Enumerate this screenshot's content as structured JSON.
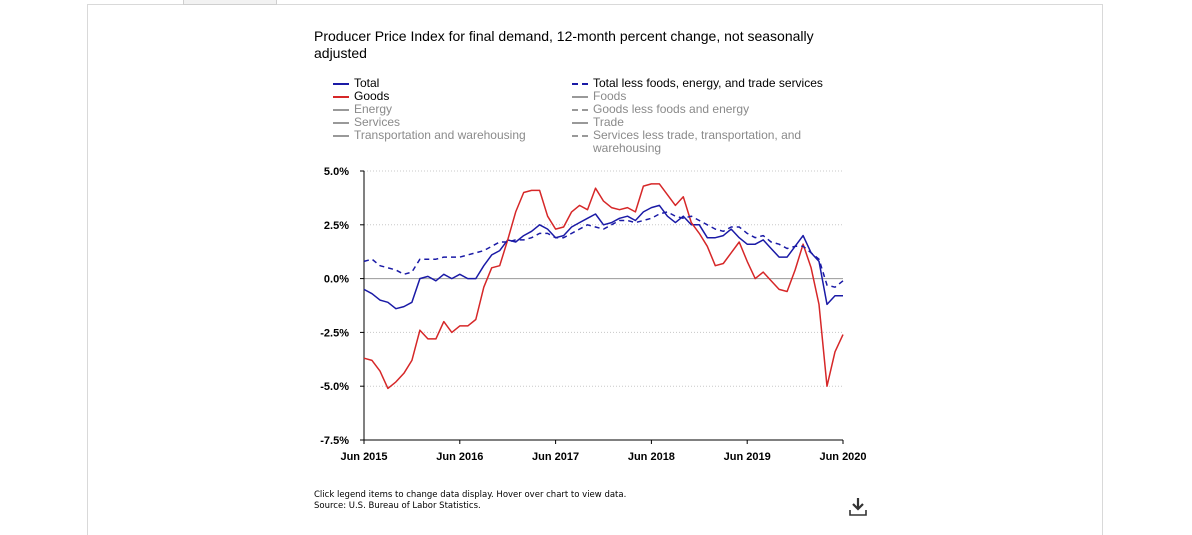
{
  "chart_data": {
    "type": "line",
    "title": "Producer Price Index for final demand, 12-month percent change, not seasonally adjusted",
    "xlabel": "",
    "ylabel": "",
    "ylim": [
      -7.5,
      5.0
    ],
    "yticks": [
      "5.0%",
      "2.5%",
      "0.0%",
      "-2.5%",
      "-5.0%",
      "-7.5%"
    ],
    "ytick_values": [
      5.0,
      2.5,
      0.0,
      -2.5,
      -5.0,
      -7.5
    ],
    "xticks": [
      "Jun 2015",
      "Jun 2016",
      "Jun 2017",
      "Jun 2018",
      "Jun 2019",
      "Jun 2020"
    ],
    "xrange": [
      "2015-06",
      "2020-06"
    ],
    "grid": true,
    "legend_position": "top",
    "legend_items": [
      {
        "name": "Total",
        "color": "#1a1aa6",
        "dash": "solid",
        "active": true,
        "column": 1
      },
      {
        "name": "Goods",
        "color": "#d62728",
        "dash": "solid",
        "active": true,
        "column": 1
      },
      {
        "name": "Energy",
        "color": "#999999",
        "dash": "solid",
        "active": false,
        "column": 1
      },
      {
        "name": "Services",
        "color": "#999999",
        "dash": "solid",
        "active": false,
        "column": 1
      },
      {
        "name": "Transportation and warehousing",
        "color": "#999999",
        "dash": "solid",
        "active": false,
        "column": 1
      },
      {
        "name": "Total less foods, energy, and trade services",
        "color": "#1a1aa6",
        "dash": "dashed",
        "active": true,
        "column": 2
      },
      {
        "name": "Foods",
        "color": "#999999",
        "dash": "solid",
        "active": false,
        "column": 2
      },
      {
        "name": "Goods less foods and energy",
        "color": "#999999",
        "dash": "dashed",
        "active": false,
        "column": 2
      },
      {
        "name": "Trade",
        "color": "#999999",
        "dash": "solid",
        "active": false,
        "column": 2
      },
      {
        "name": "Services less trade, transportation, and warehousing",
        "color": "#999999",
        "dash": "dashed",
        "active": false,
        "column": 2
      }
    ],
    "x_months": [
      "2015-06",
      "2015-07",
      "2015-08",
      "2015-09",
      "2015-10",
      "2015-11",
      "2015-12",
      "2016-01",
      "2016-02",
      "2016-03",
      "2016-04",
      "2016-05",
      "2016-06",
      "2016-07",
      "2016-08",
      "2016-09",
      "2016-10",
      "2016-11",
      "2016-12",
      "2017-01",
      "2017-02",
      "2017-03",
      "2017-04",
      "2017-05",
      "2017-06",
      "2017-07",
      "2017-08",
      "2017-09",
      "2017-10",
      "2017-11",
      "2017-12",
      "2018-01",
      "2018-02",
      "2018-03",
      "2018-04",
      "2018-05",
      "2018-06",
      "2018-07",
      "2018-08",
      "2018-09",
      "2018-10",
      "2018-11",
      "2018-12",
      "2019-01",
      "2019-02",
      "2019-03",
      "2019-04",
      "2019-05",
      "2019-06",
      "2019-07",
      "2019-08",
      "2019-09",
      "2019-10",
      "2019-11",
      "2019-12",
      "2020-01",
      "2020-02",
      "2020-03",
      "2020-04",
      "2020-05",
      "2020-06"
    ],
    "series": [
      {
        "name": "Total",
        "color": "#1a1aa6",
        "dash": "solid",
        "values": [
          -0.5,
          -0.7,
          -1.0,
          -1.1,
          -1.4,
          -1.3,
          -1.1,
          0.0,
          0.1,
          -0.1,
          0.2,
          0.0,
          0.2,
          0.0,
          0.0,
          0.6,
          1.1,
          1.3,
          1.8,
          1.7,
          2.0,
          2.2,
          2.5,
          2.3,
          1.9,
          2.0,
          2.4,
          2.6,
          2.8,
          3.0,
          2.5,
          2.6,
          2.8,
          2.9,
          2.7,
          3.1,
          3.3,
          3.4,
          2.9,
          2.6,
          2.9,
          2.5,
          2.5,
          1.9,
          1.9,
          2.0,
          2.3,
          1.9,
          1.6,
          1.6,
          1.8,
          1.4,
          1.0,
          1.0,
          1.5,
          2.0,
          1.2,
          0.8,
          -1.2,
          -0.8,
          -0.8
        ]
      },
      {
        "name": "Goods",
        "color": "#d62728",
        "dash": "solid",
        "values": [
          -3.7,
          -3.8,
          -4.3,
          -5.1,
          -4.8,
          -4.4,
          -3.8,
          -2.4,
          -2.8,
          -2.8,
          -2.0,
          -2.5,
          -2.2,
          -2.2,
          -1.9,
          -0.4,
          0.5,
          0.6,
          1.8,
          3.1,
          4.0,
          4.1,
          4.1,
          2.9,
          2.3,
          2.4,
          3.1,
          3.4,
          3.2,
          4.2,
          3.6,
          3.3,
          3.2,
          3.3,
          3.1,
          4.3,
          4.4,
          4.4,
          3.9,
          3.4,
          3.8,
          2.6,
          2.1,
          1.5,
          0.6,
          0.7,
          1.2,
          1.7,
          0.8,
          0.0,
          0.3,
          -0.1,
          -0.5,
          -0.6,
          0.4,
          1.6,
          0.5,
          -1.2,
          -5.0,
          -3.4,
          -2.6
        ]
      },
      {
        "name": "Total less foods, energy, and trade services",
        "color": "#1a1aa6",
        "dash": "dashed",
        "values": [
          0.8,
          0.9,
          0.6,
          0.5,
          0.4,
          0.2,
          0.3,
          0.9,
          0.9,
          0.9,
          1.0,
          1.0,
          1.0,
          1.1,
          1.2,
          1.3,
          1.5,
          1.7,
          1.7,
          1.8,
          1.8,
          1.9,
          2.1,
          2.1,
          1.9,
          1.9,
          2.1,
          2.3,
          2.5,
          2.4,
          2.3,
          2.5,
          2.7,
          2.7,
          2.6,
          2.7,
          2.8,
          3.0,
          3.1,
          2.9,
          2.8,
          2.9,
          2.7,
          2.5,
          2.3,
          2.2,
          2.4,
          2.4,
          2.1,
          1.9,
          2.0,
          1.7,
          1.6,
          1.4,
          1.5,
          1.5,
          1.2,
          0.9,
          -0.3,
          -0.4,
          -0.1
        ]
      }
    ]
  },
  "footnote": {
    "line1": "Click legend items to change data display. Hover over chart to view data.",
    "line2": "Source: U.S. Bureau of Labor Statistics."
  },
  "icons": {
    "download": "download-icon"
  }
}
